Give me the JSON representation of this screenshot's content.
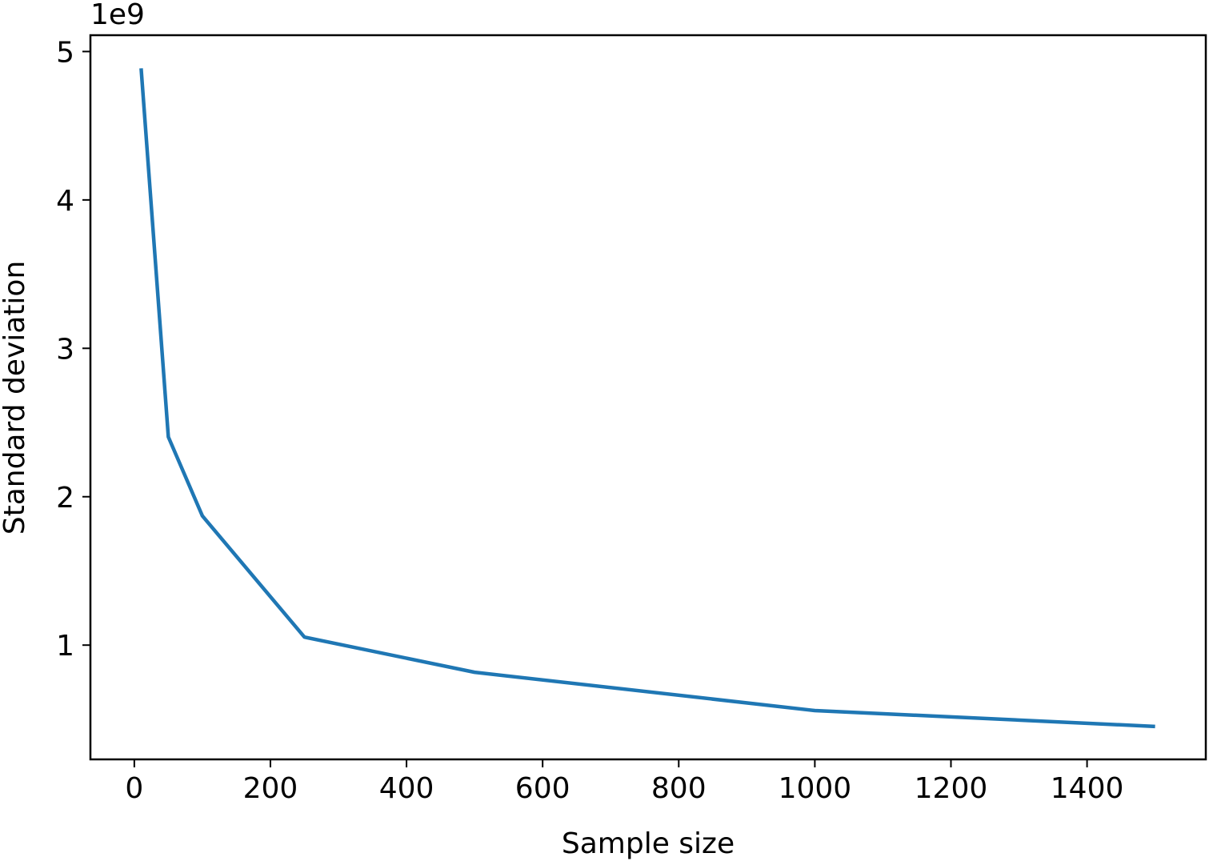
{
  "chart_data": {
    "type": "line",
    "x_label": "Sample size",
    "y_label": "Standard deviation",
    "y_offset_text": "1e9",
    "x": [
      10,
      50,
      100,
      250,
      500,
      1000,
      1500
    ],
    "series": [
      {
        "color": "#1f77b4",
        "values": [
          4.887,
          2.403,
          1.871,
          1.054,
          0.817,
          0.559,
          0.452
        ]
      }
    ],
    "xlim": [
      -64.5,
      1574.5
    ],
    "ylim": [
      0.23,
      5.11
    ],
    "xticks": [
      0,
      200,
      400,
      600,
      800,
      1000,
      1200,
      1400
    ],
    "yticks": [
      1,
      2,
      3,
      4,
      5
    ],
    "grid": false
  }
}
